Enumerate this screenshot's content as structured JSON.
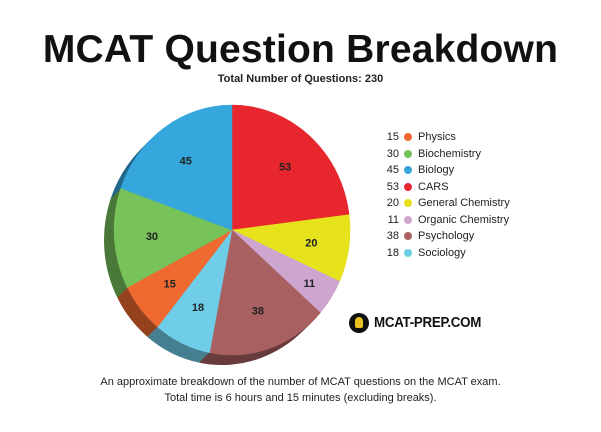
{
  "header": {
    "title": "MCAT Question Breakdown",
    "subtitle": "Total Number of Questions: 230"
  },
  "chart_data": {
    "type": "pie",
    "title": "MCAT Question Breakdown",
    "subtitle": "Total Number of Questions: 230",
    "total": 230,
    "legend_position": "right",
    "slices": [
      {
        "label": "CARS",
        "value": 53,
        "color": "#e8262d"
      },
      {
        "label": "General Chemistry",
        "value": 20,
        "color": "#e6e21c"
      },
      {
        "label": "Organic Chemistry",
        "value": 11,
        "color": "#cda6d0"
      },
      {
        "label": "Psychology",
        "value": 38,
        "color": "#a86060"
      },
      {
        "label": "Sociology",
        "value": 18,
        "color": "#6fcde8"
      },
      {
        "label": "Physics",
        "value": 15,
        "color": "#ee6a30"
      },
      {
        "label": "Biochemistry",
        "value": 30,
        "color": "#78c25a"
      },
      {
        "label": "Biology",
        "value": 45,
        "color": "#35a7dd"
      }
    ],
    "legend": [
      {
        "value": "15",
        "label": "Physics",
        "color": "#ee6a30"
      },
      {
        "value": "30",
        "label": "Biochemistry",
        "color": "#78c25a"
      },
      {
        "value": "45",
        "label": "Biology",
        "color": "#35a7dd"
      },
      {
        "value": "53",
        "label": "CARS",
        "color": "#e8262d"
      },
      {
        "value": "20",
        "label": "General Chemistry",
        "color": "#e6e21c"
      },
      {
        "value": "11",
        "label": "Organic Chemistry",
        "color": "#cda6d0"
      },
      {
        "value": "38",
        "label": "Psychology",
        "color": "#a86060"
      },
      {
        "value": "18",
        "label": "Sociology",
        "color": "#6fcde8"
      }
    ]
  },
  "logo": {
    "text": "MCAT-PREP.COM",
    "icon": "mcat-prep-logo-icon"
  },
  "caption": {
    "line1": "An approximate breakdown of the number of MCAT questions on the MCAT exam.",
    "line2": "Total time is 6 hours and 15 minutes (excluding breaks)."
  }
}
